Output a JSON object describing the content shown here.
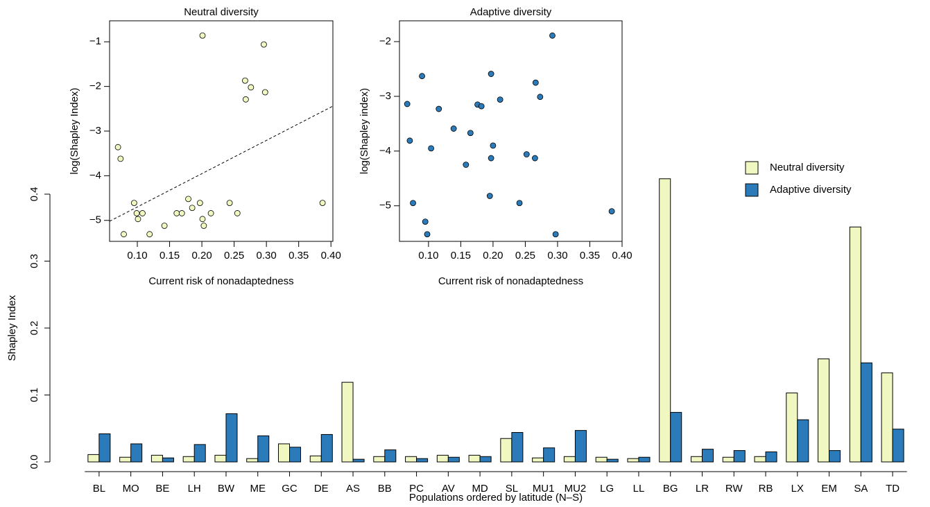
{
  "chart_data": [
    {
      "type": "bar",
      "x_label": "Populations ordered by latitude (N–S)",
      "y_label": "Shapley Index",
      "categories": [
        "BL",
        "MO",
        "BE",
        "LH",
        "BW",
        "ME",
        "GC",
        "DE",
        "AS",
        "BB",
        "PC",
        "AV",
        "MD",
        "SL",
        "MU1",
        "MU2",
        "LG",
        "LL",
        "BG",
        "LR",
        "RW",
        "RB",
        "LX",
        "EM",
        "SA",
        "TD"
      ],
      "series": [
        {
          "name": "Neutral diversity",
          "color": "#f1f7c0",
          "values": [
            0.011,
            0.007,
            0.01,
            0.008,
            0.01,
            0.005,
            0.027,
            0.009,
            0.119,
            0.008,
            0.008,
            0.01,
            0.01,
            0.035,
            0.006,
            0.008,
            0.007,
            0.005,
            0.423,
            0.008,
            0.007,
            0.008,
            0.103,
            0.154,
            0.351,
            0.133
          ]
        },
        {
          "name": "Adaptive diversity",
          "color": "#2b7bba",
          "values": [
            0.042,
            0.027,
            0.006,
            0.026,
            0.072,
            0.039,
            0.022,
            0.041,
            0.004,
            0.018,
            0.005,
            0.007,
            0.008,
            0.044,
            0.021,
            0.047,
            0.004,
            0.007,
            0.074,
            0.019,
            0.017,
            0.015,
            0.063,
            0.017,
            0.148,
            0.049
          ]
        }
      ],
      "ylim": [
        0,
        0.43
      ],
      "yticks": [
        {
          "value": 0,
          "label": "0.0"
        },
        0.1,
        0.2,
        0.3,
        0.4
      ],
      "legend_loc": "upper right"
    },
    {
      "type": "scatter",
      "title": "Neutral diversity",
      "x_label": "Current risk of nonadaptedness",
      "y_label": "log(Shapley Index)",
      "color": "#f1f7c0",
      "x": [
        0.07,
        0.074,
        0.079,
        0.095,
        0.099,
        0.101,
        0.108,
        0.119,
        0.142,
        0.161,
        0.169,
        0.179,
        0.185,
        0.197,
        0.201,
        0.203,
        0.201,
        0.214,
        0.243,
        0.255,
        0.267,
        0.276,
        0.268,
        0.296,
        0.298,
        0.387
      ],
      "y": [
        -3.36,
        -3.62,
        -5.31,
        -4.61,
        -4.84,
        -4.97,
        -4.84,
        -5.31,
        -5.12,
        -4.84,
        -4.84,
        -4.52,
        -4.72,
        -4.61,
        -4.97,
        -5.12,
        -0.86,
        -4.84,
        -4.61,
        -4.84,
        -1.87,
        -2.02,
        -2.29,
        -1.06,
        -2.13,
        -4.61
      ],
      "trend_line": {
        "x": [
          0.057,
          0.403
        ],
        "y": [
          -5.02,
          -2.44
        ]
      },
      "xlim": [
        0.057,
        0.403
      ],
      "ylim": [
        -5.47,
        -0.53
      ],
      "xticks": [
        {
          "value": 0.1,
          "label": "0.10"
        },
        0.15,
        {
          "value": 0.2,
          "label": "0.20"
        },
        0.25,
        {
          "value": 0.3,
          "label": "0.30"
        },
        0.35,
        {
          "value": 0.4,
          "label": "0.40"
        }
      ],
      "yticks": [
        {
          "value": -1,
          "label": "−1"
        },
        {
          "value": -2,
          "label": "−2"
        },
        {
          "value": -3,
          "label": "−3"
        },
        {
          "value": -4,
          "label": "−4"
        },
        {
          "value": -5,
          "label": "−5"
        }
      ]
    },
    {
      "type": "scatter",
      "title": "Adaptive diversity",
      "x_label": "Current risk of nonadaptedness",
      "y_label": "log(Shapley index)",
      "color": "#2b7bba",
      "x": [
        0.067,
        0.071,
        0.076,
        0.09,
        0.095,
        0.098,
        0.104,
        0.116,
        0.139,
        0.158,
        0.165,
        0.176,
        0.182,
        0.195,
        0.197,
        0.197,
        0.2,
        0.211,
        0.241,
        0.252,
        0.265,
        0.266,
        0.273,
        0.292,
        0.297,
        0.384
      ],
      "y": [
        -3.14,
        -3.81,
        -4.95,
        -2.63,
        -5.29,
        -5.52,
        -3.95,
        -3.23,
        -3.59,
        -4.25,
        -3.67,
        -3.15,
        -3.18,
        -4.82,
        -2.59,
        -4.13,
        -3.9,
        -3.06,
        -4.95,
        -4.06,
        -4.13,
        -2.75,
        -3.01,
        -1.89,
        -5.52,
        -5.1
      ],
      "xlim": [
        0.055,
        0.4
      ],
      "ylim": [
        -5.65,
        -1.62
      ],
      "xticks": [
        {
          "value": 0.1,
          "label": "0.10"
        },
        0.15,
        {
          "value": 0.2,
          "label": "0.20"
        },
        0.25,
        {
          "value": 0.3,
          "label": "0.30"
        },
        0.35,
        {
          "value": 0.4,
          "label": "0.40"
        }
      ],
      "yticks": [
        {
          "value": -2,
          "label": "−2"
        },
        {
          "value": -3,
          "label": "−3"
        },
        {
          "value": -4,
          "label": "−4"
        },
        {
          "value": -5,
          "label": "−5"
        }
      ]
    }
  ]
}
